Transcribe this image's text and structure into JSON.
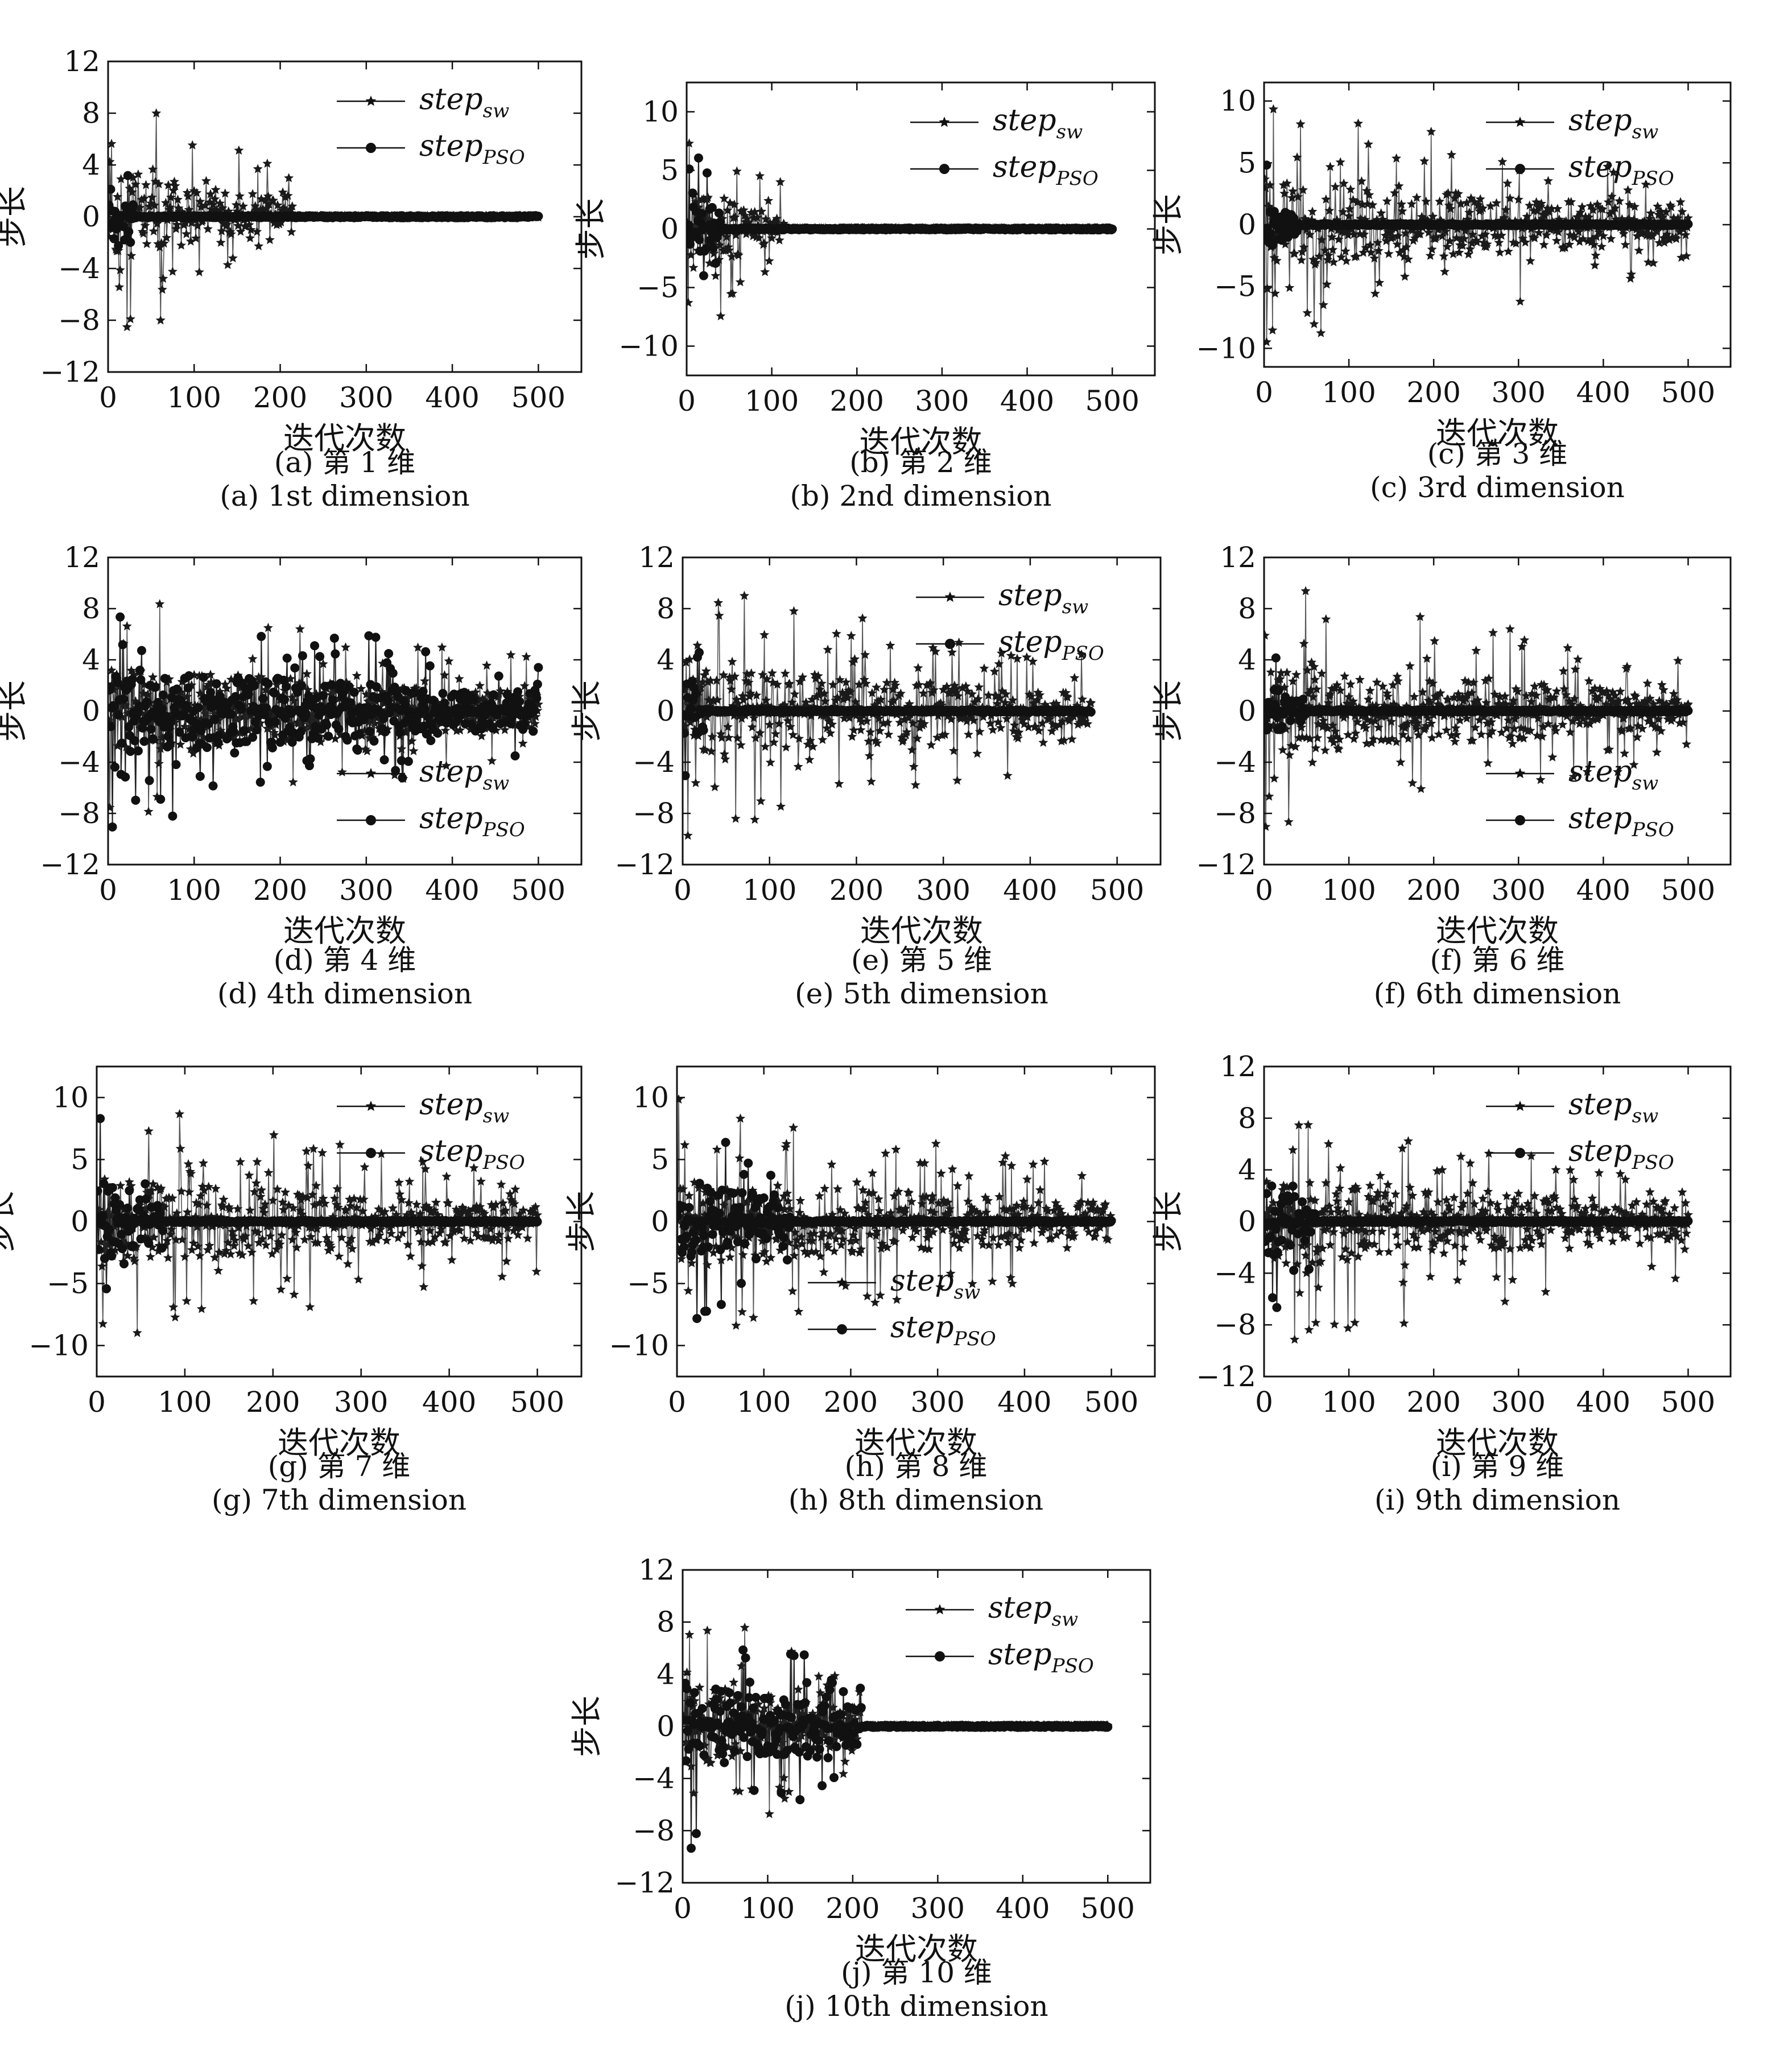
{
  "chart_data": [
    {
      "type": "line",
      "subplot_label_cn": "(a) 第 1 维",
      "subplot_label_en": "(a) 1st dimension",
      "xlabel": "迭代次数",
      "ylabel": "步长",
      "xlim": [
        0,
        550
      ],
      "ylim": [
        -12,
        12
      ],
      "xticks": [
        0,
        100,
        200,
        300,
        400,
        500
      ],
      "yticks": [
        12,
        8,
        4,
        0,
        -4,
        -8,
        -12
      ],
      "legend": "top-right",
      "n_iter": 500,
      "series": [
        {
          "name": "step",
          "sub": "sw",
          "marker": "star",
          "active_end": 215,
          "peak": 9.9
        },
        {
          "name": "step",
          "sub": "PSO",
          "marker": "circle",
          "active_end": 30,
          "peak": 9.8
        }
      ]
    },
    {
      "type": "line",
      "subplot_label_cn": "(b) 第 2 维",
      "subplot_label_en": "(b) 2nd dimension",
      "xlabel": "迭代次数",
      "ylabel": "步长",
      "xlim": [
        0,
        550
      ],
      "ylim": [
        -12.5,
        12.5
      ],
      "xticks": [
        0,
        100,
        200,
        300,
        400,
        500
      ],
      "yticks": [
        10,
        5,
        0,
        -5,
        -10
      ],
      "legend": "top-right",
      "n_iter": 500,
      "series": [
        {
          "name": "step",
          "sub": "sw",
          "marker": "star",
          "active_end": 115,
          "peak": 10
        },
        {
          "name": "step",
          "sub": "PSO",
          "marker": "circle",
          "active_end": 40,
          "peak": 10
        }
      ]
    },
    {
      "type": "line",
      "subplot_label_cn": "(c) 第 3 维",
      "subplot_label_en": "(c) 3rd dimension",
      "xlabel": "迭代次数",
      "ylabel": "步长",
      "xlim": [
        0,
        550
      ],
      "ylim": [
        -11.5,
        11.5
      ],
      "xticks": [
        0,
        100,
        200,
        300,
        400,
        500
      ],
      "yticks": [
        10,
        5,
        0,
        -5,
        -10
      ],
      "legend": "top-right",
      "n_iter": 500,
      "series": [
        {
          "name": "step",
          "sub": "sw",
          "marker": "star",
          "active_end": 500,
          "peak": 10
        },
        {
          "name": "step",
          "sub": "PSO",
          "marker": "circle",
          "active_end": 40,
          "peak": 6
        }
      ]
    },
    {
      "type": "line",
      "subplot_label_cn": "(d) 第 4 维",
      "subplot_label_en": "(d) 4th dimension",
      "xlabel": "迭代次数",
      "ylabel": "步长",
      "xlim": [
        0,
        550
      ],
      "ylim": [
        -12,
        12
      ],
      "xticks": [
        0,
        100,
        200,
        300,
        400,
        500
      ],
      "yticks": [
        12,
        8,
        4,
        0,
        -4,
        -8,
        -12
      ],
      "legend": "bottom-right",
      "n_iter": 500,
      "series": [
        {
          "name": "step",
          "sub": "sw",
          "marker": "star",
          "active_end": 500,
          "peak": 9.8
        },
        {
          "name": "step",
          "sub": "PSO",
          "marker": "circle",
          "active_end": 500,
          "peak": 9.6
        }
      ]
    },
    {
      "type": "line",
      "subplot_label_cn": "(e) 第 5 维",
      "subplot_label_en": "(e) 5th dimension",
      "xlabel": "迭代次数",
      "ylabel": "步长",
      "xlim": [
        0,
        550
      ],
      "ylim": [
        -12,
        12
      ],
      "xticks": [
        0,
        100,
        200,
        300,
        400,
        500
      ],
      "yticks": [
        12,
        8,
        4,
        0,
        -4,
        -8,
        -12
      ],
      "legend": "top-right",
      "n_iter": 470,
      "series": [
        {
          "name": "step",
          "sub": "sw",
          "marker": "star",
          "active_end": 470,
          "peak": 10
        },
        {
          "name": "step",
          "sub": "PSO",
          "marker": "circle",
          "active_end": 25,
          "peak": 10
        }
      ]
    },
    {
      "type": "line",
      "subplot_label_cn": "(f) 第 6 维",
      "subplot_label_en": "(f) 6th dimension",
      "xlabel": "迭代次数",
      "ylabel": "步长",
      "xlim": [
        0,
        550
      ],
      "ylim": [
        -12,
        12
      ],
      "xticks": [
        0,
        100,
        200,
        300,
        400,
        500
      ],
      "yticks": [
        12,
        8,
        4,
        0,
        -4,
        -8,
        -12
      ],
      "legend": "bottom-right",
      "n_iter": 500,
      "series": [
        {
          "name": "step",
          "sub": "sw",
          "marker": "star",
          "active_end": 500,
          "peak": 10
        },
        {
          "name": "step",
          "sub": "PSO",
          "marker": "circle",
          "active_end": 50,
          "peak": 6.4
        }
      ]
    },
    {
      "type": "line",
      "subplot_label_cn": "(g) 第 7 维",
      "subplot_label_en": "(g) 7th dimension",
      "xlabel": "迭代次数",
      "ylabel": "步长",
      "xlim": [
        0,
        550
      ],
      "ylim": [
        -12.5,
        12.5
      ],
      "xticks": [
        0,
        100,
        200,
        300,
        400,
        500
      ],
      "yticks": [
        10,
        5,
        0,
        -5,
        -10
      ],
      "legend": "top-right",
      "n_iter": 500,
      "series": [
        {
          "name": "step",
          "sub": "sw",
          "marker": "star",
          "active_end": 500,
          "peak": 10
        },
        {
          "name": "step",
          "sub": "PSO",
          "marker": "circle",
          "active_end": 75,
          "peak": 10
        }
      ]
    },
    {
      "type": "line",
      "subplot_label_cn": "(h) 第 8 维",
      "subplot_label_en": "(h) 8th dimension",
      "xlabel": "迭代次数",
      "ylabel": "步长",
      "xlim": [
        0,
        550
      ],
      "ylim": [
        -12.5,
        12.5
      ],
      "xticks": [
        0,
        100,
        200,
        300,
        400,
        500
      ],
      "yticks": [
        10,
        5,
        0,
        -5,
        -10
      ],
      "legend": "bottom-left",
      "n_iter": 500,
      "series": [
        {
          "name": "step",
          "sub": "sw",
          "marker": "star",
          "active_end": 500,
          "peak": 10.3
        },
        {
          "name": "step",
          "sub": "PSO",
          "marker": "circle",
          "active_end": 130,
          "peak": 10.2
        }
      ]
    },
    {
      "type": "line",
      "subplot_label_cn": "(i) 第 9 维",
      "subplot_label_en": "(i) 9th dimension",
      "xlabel": "迭代次数",
      "ylabel": "步长",
      "xlim": [
        0,
        550
      ],
      "ylim": [
        -12,
        12
      ],
      "xticks": [
        0,
        100,
        200,
        300,
        400,
        500
      ],
      "yticks": [
        12,
        8,
        4,
        0,
        -4,
        -8,
        -12
      ],
      "legend": "top-right",
      "n_iter": 500,
      "series": [
        {
          "name": "step",
          "sub": "sw",
          "marker": "star",
          "active_end": 500,
          "peak": 10
        },
        {
          "name": "step",
          "sub": "PSO",
          "marker": "circle",
          "active_end": 60,
          "peak": 9.4
        }
      ]
    },
    {
      "type": "line",
      "subplot_label_cn": "(j) 第 10 维",
      "subplot_label_en": "(j) 10th dimension",
      "xlabel": "迭代次数",
      "ylabel": "步长",
      "xlim": [
        0,
        550
      ],
      "ylim": [
        -12,
        12
      ],
      "xticks": [
        0,
        100,
        200,
        300,
        400,
        500
      ],
      "yticks": [
        12,
        8,
        4,
        0,
        -4,
        -8,
        -12
      ],
      "legend": "top-right",
      "n_iter": 500,
      "series": [
        {
          "name": "step",
          "sub": "sw",
          "marker": "star",
          "active_end": 210,
          "peak": 9.8
        },
        {
          "name": "step",
          "sub": "PSO",
          "marker": "circle",
          "active_end": 210,
          "peak": 9.7
        }
      ]
    }
  ]
}
